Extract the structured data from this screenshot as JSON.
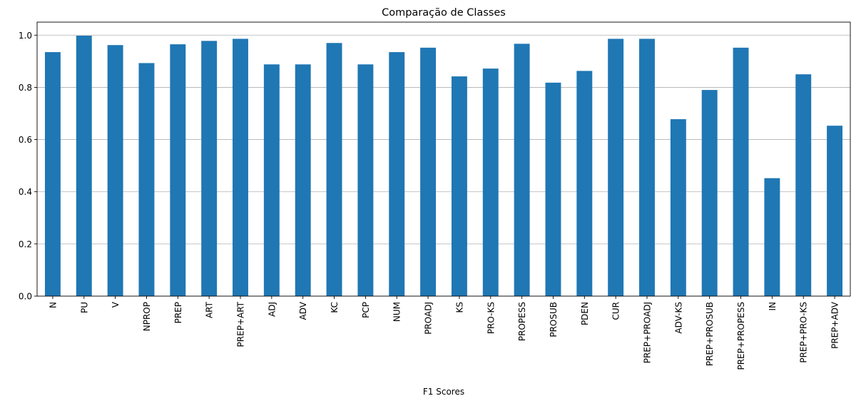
{
  "chart_data": {
    "type": "bar",
    "title": "Comparação de Classes",
    "xlabel": "F1 Scores",
    "ylabel": "",
    "ylim": [
      0,
      1.05
    ],
    "yticks": [
      0.0,
      0.2,
      0.4,
      0.6,
      0.8,
      1.0
    ],
    "ytick_labels": [
      "0.0",
      "0.2",
      "0.4",
      "0.6",
      "0.8",
      "1.0"
    ],
    "grid": "horizontal",
    "legend": "none",
    "bar_color": "#1f77b4",
    "categories": [
      "N",
      "PU",
      "V",
      "NPROP",
      "PREP",
      "ART",
      "PREP+ART",
      "ADJ",
      "ADV",
      "KC",
      "PCP",
      "NUM",
      "PROADJ",
      "KS",
      "PRO-KS",
      "PROPESS",
      "PROSUB",
      "PDEN",
      "CUR",
      "PREP+PROADJ",
      "ADV-KS",
      "PREP+PROSUB",
      "PREP+PROPESS",
      "IN",
      "PREP+PRO-KS",
      "PREP+ADV"
    ],
    "values": [
      0.935,
      0.998,
      0.962,
      0.893,
      0.965,
      0.978,
      0.986,
      0.888,
      0.888,
      0.97,
      0.888,
      0.935,
      0.952,
      0.842,
      0.872,
      0.967,
      0.818,
      0.863,
      0.986,
      0.986,
      0.678,
      0.79,
      0.952,
      0.452,
      0.85,
      0.653
    ]
  }
}
